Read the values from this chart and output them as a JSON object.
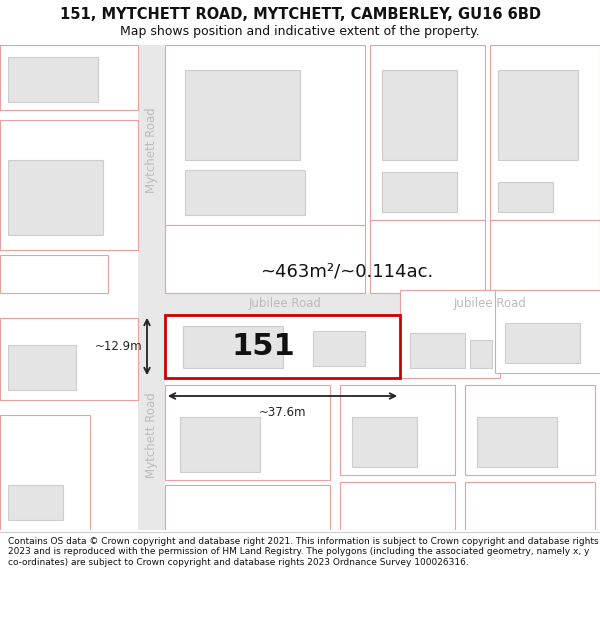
{
  "title": "151, MYTCHETT ROAD, MYTCHETT, CAMBERLEY, GU16 6BD",
  "subtitle": "Map shows position and indicative extent of the property.",
  "footer": "Contains OS data © Crown copyright and database right 2021. This information is subject to Crown copyright and database rights 2023 and is reproduced with the permission of HM Land Registry. The polygons (including the associated geometry, namely x, y co-ordinates) are subject to Crown copyright and database rights 2023 Ordnance Survey 100026316.",
  "bg_color": "#ffffff",
  "map_bg": "#f5f5f5",
  "plot_outline_color": "#e8a0a0",
  "highlight_color": "#cc0000",
  "road_label_color": "#bbbbbb",
  "dim_color": "#222222",
  "area_label": "~463m²/~0.114ac.",
  "width_label": "~37.6m",
  "height_label": "~12.9m",
  "plot_number": "151",
  "road_name_top": "Mytchett Road",
  "road_name_bottom": "Mytchett Road",
  "jubilee_road_left": "Jubilee Road",
  "jubilee_road_right": "Jubilee Road"
}
